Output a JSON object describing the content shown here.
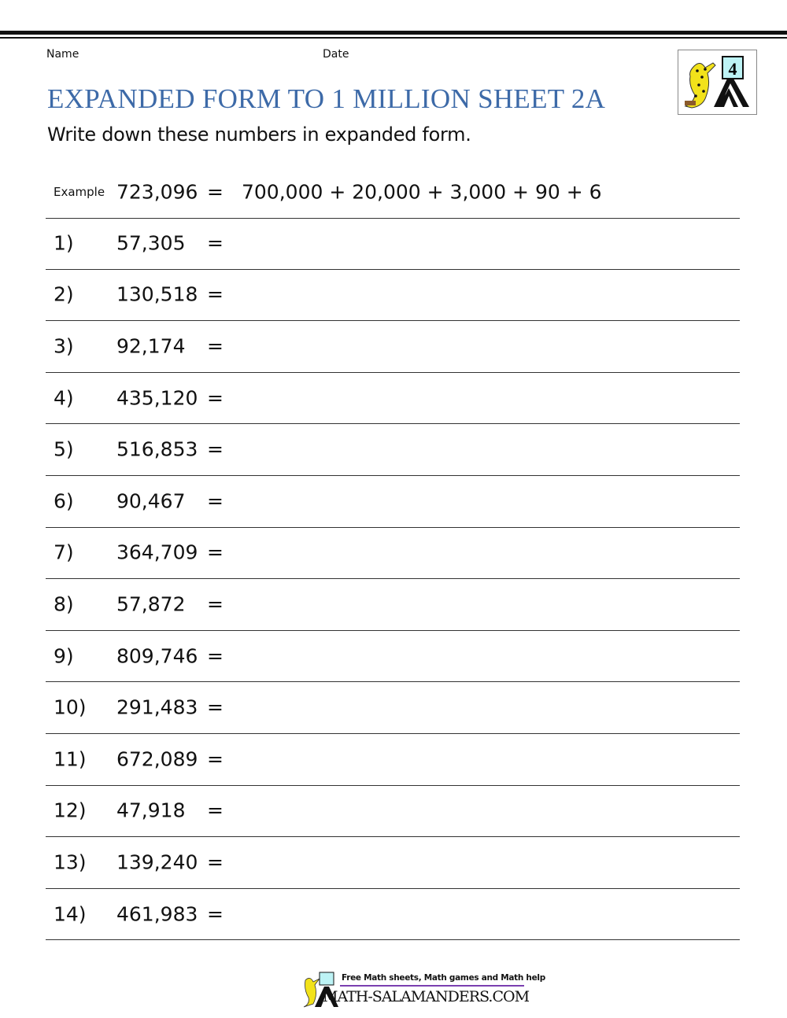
{
  "header": {
    "name_label": "Name",
    "date_label": "Date"
  },
  "title": "EXPANDED FORM TO 1 MILLION SHEET 2A",
  "instructions": "Write down these numbers in expanded form.",
  "logo": {
    "grade": "4",
    "icon": "salamander-easel-logo"
  },
  "example": {
    "label": "Example",
    "number": "723,096",
    "equals": "=",
    "expanded": "700,000 + 20,000 + 3,000 + 90 + 6"
  },
  "questions": [
    {
      "label": "1)",
      "number": "57,305"
    },
    {
      "label": "2)",
      "number": "130,518"
    },
    {
      "label": "3)",
      "number": "92,174"
    },
    {
      "label": "4)",
      "number": "435,120"
    },
    {
      "label": "5)",
      "number": "516,853"
    },
    {
      "label": "6)",
      "number": "90,467"
    },
    {
      "label": "7)",
      "number": "364,709"
    },
    {
      "label": "8)",
      "number": "57,872"
    },
    {
      "label": "9)",
      "number": "809,746"
    },
    {
      "label": "10)",
      "number": "291,483"
    },
    {
      "label": "11)",
      "number": "672,089"
    },
    {
      "label": "12)",
      "number": "47,918"
    },
    {
      "label": "13)",
      "number": "139,240"
    },
    {
      "label": "14)",
      "number": "461,983"
    }
  ],
  "equals": "=",
  "footer": {
    "tagline": "Free Math sheets, Math games and Math help",
    "site": "MATH-SALAMANDERS.COM"
  },
  "colors": {
    "title": "#3d6aa8",
    "footer_bar": "#7a3fb0"
  }
}
